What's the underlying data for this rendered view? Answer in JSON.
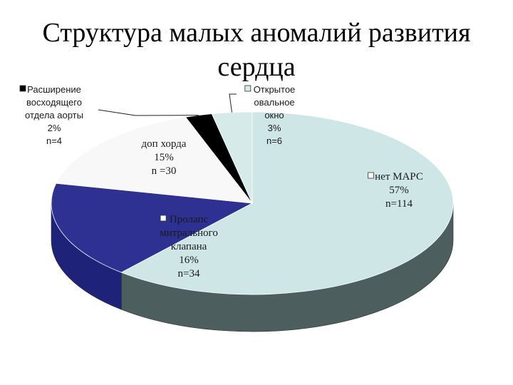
{
  "slide": {
    "title": "Структура малых аномалий развития сердца"
  },
  "chart_data": {
    "type": "pie",
    "title": "Структура малых аномалий развития сердца",
    "three_d": true,
    "slices": [
      {
        "label": "нет МАРС",
        "percent": 57,
        "n": 114,
        "pct_text": "57%",
        "n_text": "n=114",
        "color": "#cfe6e6",
        "side_color": "#4d5e5e"
      },
      {
        "label": "Пролапс митрального клапана",
        "percent": 16,
        "n": 34,
        "pct_text": "16%",
        "n_text": "n=34",
        "color": "#2e3192",
        "side_color": "#1e2278"
      },
      {
        "label": "доп хорда",
        "percent": 15,
        "n": 30,
        "pct_text": "15%",
        "n_text": "n =30",
        "color": "#f8f8f8",
        "side_color": "#dcdcdc"
      },
      {
        "label": "Расширение восходящего отдела аорты",
        "percent": 2,
        "n": 4,
        "pct_text": "2%",
        "n_text": "n=4",
        "color": "#000000",
        "side_color": "#000000"
      },
      {
        "label": "Открытое овальное окно",
        "percent": 3,
        "n": 6,
        "pct_text": "3%",
        "n_text": "n=6",
        "color": "#d6eaea",
        "side_color": "#a9bcbc"
      }
    ],
    "label_lines": {
      "s0": [
        "нет МАРС",
        "57%",
        "n=114"
      ],
      "s1": [
        "Пролапс",
        "митрального",
        "клапана",
        "16%",
        "n=34"
      ],
      "s2": [
        "доп хорда",
        "15%",
        "n =30"
      ],
      "s3": [
        "Расширение",
        "восходящего",
        "отдела аорты",
        "2%",
        "n=4"
      ],
      "s4": [
        "Открытое",
        "овальное",
        "окно",
        "3%",
        "n=6"
      ]
    }
  }
}
